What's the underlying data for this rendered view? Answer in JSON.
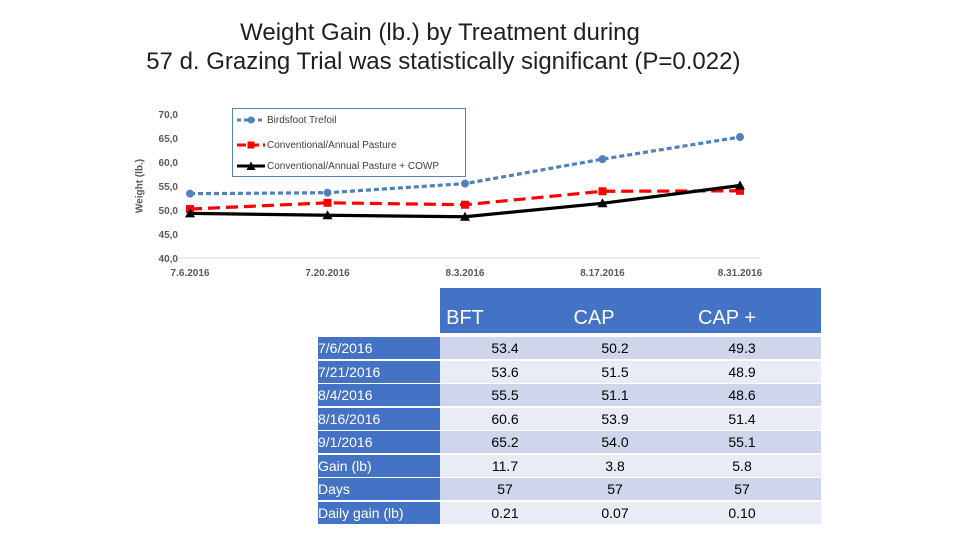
{
  "title_line1": "Weight Gain (lb.) by Treatment during",
  "title_line2": " 57 d. Grazing Trial was statistically significant (P=0.022)",
  "chart_data": {
    "type": "line",
    "title": "Weight Gain (lb.) by Treatment during 57 d. Grazing Trial was statistically significant (P=0.022)",
    "xlabel": "",
    "ylabel": "Weight (lb.)",
    "categories": [
      "7.6.2016",
      "7.20.2016",
      "8.3.2016",
      "8.17.2016",
      "8.31.2016"
    ],
    "y_ticks": [
      "40,0",
      "45,0",
      "50,0",
      "55,0",
      "60,0",
      "65,0",
      "70,0"
    ],
    "ylim": [
      40,
      70
    ],
    "grid": false,
    "legend_position": "top-left",
    "series": [
      {
        "name": "Birdsfoot Trefoil",
        "color": "#4f81bd",
        "marker": "circle",
        "dash": "dashed",
        "values": [
          53.4,
          53.6,
          55.5,
          60.6,
          65.2
        ]
      },
      {
        "name": "Conventional/Annual Pasture",
        "color": "#ff0000",
        "marker": "square",
        "dash": "long-dash",
        "values": [
          50.2,
          51.5,
          51.1,
          53.9,
          54.0
        ]
      },
      {
        "name": "Conventional/Annual Pasture + COWP",
        "color": "#000000",
        "marker": "triangle",
        "dash": "solid",
        "values": [
          49.3,
          48.9,
          48.6,
          51.4,
          55.1
        ]
      }
    ]
  },
  "table": {
    "headers": [
      "BFT",
      "CAP",
      "CAP + COWP"
    ],
    "rows": [
      {
        "label": "7/6/2016",
        "values": [
          "53.4",
          "50.2",
          "49.3"
        ]
      },
      {
        "label": "7/21/2016",
        "values": [
          "53.6",
          "51.5",
          "48.9"
        ]
      },
      {
        "label": "8/4/2016",
        "values": [
          "55.5",
          "51.1",
          "48.6"
        ]
      },
      {
        "label": "8/16/2016",
        "values": [
          "60.6",
          "53.9",
          "51.4"
        ]
      },
      {
        "label": "9/1/2016",
        "values": [
          "65.2",
          "54.0",
          "55.1"
        ]
      },
      {
        "label": " Gain (lb)",
        "values": [
          "11.7",
          "3.8",
          "5.8"
        ]
      },
      {
        "label": " Days",
        "values": [
          "57",
          "57",
          "57"
        ]
      },
      {
        "label": " Daily gain (lb)",
        "values": [
          "0.21",
          "0.07",
          "0.10"
        ]
      }
    ]
  }
}
